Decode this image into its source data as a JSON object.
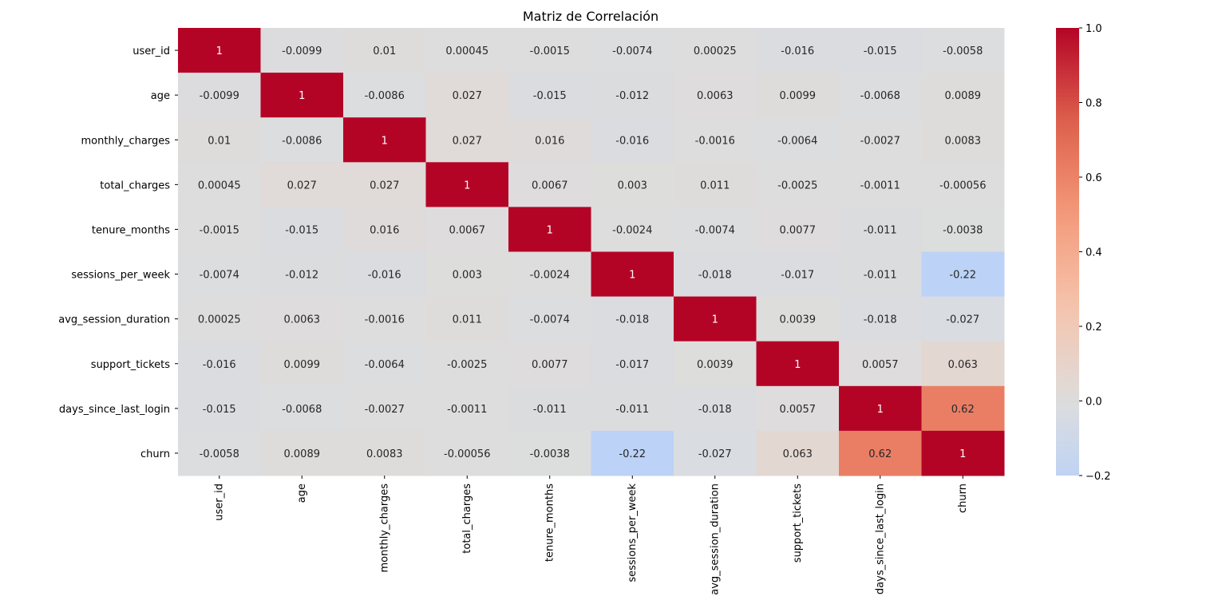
{
  "chart_data": {
    "type": "heatmap",
    "title": "Matriz de Correlación",
    "xlabel": "",
    "ylabel": "",
    "colormap": "coolwarm",
    "vmin": -0.2,
    "vmax": 1.0,
    "center": 0.0,
    "colorbar_ticks": [
      "1.0",
      "0.8",
      "0.6",
      "0.4",
      "0.2",
      "0.0",
      "−0.2"
    ],
    "colorbar_tick_values": [
      1.0,
      0.8,
      0.6,
      0.4,
      0.2,
      0.0,
      -0.2
    ],
    "labels": [
      "user_id",
      "age",
      "monthly_charges",
      "total_charges",
      "tenure_months",
      "sessions_per_week",
      "avg_session_duration",
      "support_tickets",
      "days_since_last_login",
      "churn"
    ],
    "values": [
      [
        1,
        -0.0099,
        0.01,
        0.00045,
        -0.0015,
        -0.0074,
        0.00025,
        -0.016,
        -0.015,
        -0.0058
      ],
      [
        -0.0099,
        1,
        -0.0086,
        0.027,
        -0.015,
        -0.012,
        0.0063,
        0.0099,
        -0.0068,
        0.0089
      ],
      [
        0.01,
        -0.0086,
        1,
        0.027,
        0.016,
        -0.016,
        -0.0016,
        -0.0064,
        -0.0027,
        0.0083
      ],
      [
        0.00045,
        0.027,
        0.027,
        1,
        0.0067,
        0.003,
        0.011,
        -0.0025,
        -0.0011,
        -0.00056
      ],
      [
        -0.0015,
        -0.015,
        0.016,
        0.0067,
        1,
        -0.0024,
        -0.0074,
        0.0077,
        -0.011,
        -0.0038
      ],
      [
        -0.0074,
        -0.012,
        -0.016,
        0.003,
        -0.0024,
        1,
        -0.018,
        -0.017,
        -0.011,
        -0.22
      ],
      [
        0.00025,
        0.0063,
        -0.0016,
        0.011,
        -0.0074,
        -0.018,
        1,
        0.0039,
        -0.018,
        -0.027
      ],
      [
        -0.016,
        0.0099,
        -0.0064,
        -0.0025,
        0.0077,
        -0.017,
        0.0039,
        1,
        0.0057,
        0.063
      ],
      [
        -0.015,
        -0.0068,
        -0.0027,
        -0.0011,
        -0.011,
        -0.011,
        -0.018,
        0.0057,
        1,
        0.62
      ],
      [
        -0.0058,
        0.0089,
        0.0083,
        -0.00056,
        -0.0038,
        -0.22,
        -0.027,
        0.063,
        0.62,
        1
      ]
    ],
    "annotations": [
      [
        "1",
        "-0.0099",
        "0.01",
        "0.00045",
        "-0.0015",
        "-0.0074",
        "0.00025",
        "-0.016",
        "-0.015",
        "-0.0058"
      ],
      [
        "-0.0099",
        "1",
        "-0.0086",
        "0.027",
        "-0.015",
        "-0.012",
        "0.0063",
        "0.0099",
        "-0.0068",
        "0.0089"
      ],
      [
        "0.01",
        "-0.0086",
        "1",
        "0.027",
        "0.016",
        "-0.016",
        "-0.0016",
        "-0.0064",
        "-0.0027",
        "0.0083"
      ],
      [
        "0.00045",
        "0.027",
        "0.027",
        "1",
        "0.0067",
        "0.003",
        "0.011",
        "-0.0025",
        "-0.0011",
        "-0.00056"
      ],
      [
        "-0.0015",
        "-0.015",
        "0.016",
        "0.0067",
        "1",
        "-0.0024",
        "-0.0074",
        "0.0077",
        "-0.011",
        "-0.0038"
      ],
      [
        "-0.0074",
        "-0.012",
        "-0.016",
        "0.003",
        "-0.0024",
        "1",
        "-0.018",
        "-0.017",
        "-0.011",
        "-0.22"
      ],
      [
        "0.00025",
        "0.0063",
        "-0.0016",
        "0.011",
        "-0.0074",
        "-0.018",
        "1",
        "0.0039",
        "-0.018",
        "-0.027"
      ],
      [
        "-0.016",
        "0.0099",
        "-0.0064",
        "-0.0025",
        "0.0077",
        "-0.017",
        "0.0039",
        "1",
        "0.0057",
        "0.063"
      ],
      [
        "-0.015",
        "-0.0068",
        "-0.0027",
        "-0.0011",
        "-0.011",
        "-0.011",
        "-0.018",
        "0.0057",
        "1",
        "0.62"
      ],
      [
        "-0.0058",
        "0.0089",
        "0.0083",
        "-0.00056",
        "-0.0038",
        "-0.22",
        "-0.027",
        "0.063",
        "0.62",
        "1"
      ]
    ]
  }
}
